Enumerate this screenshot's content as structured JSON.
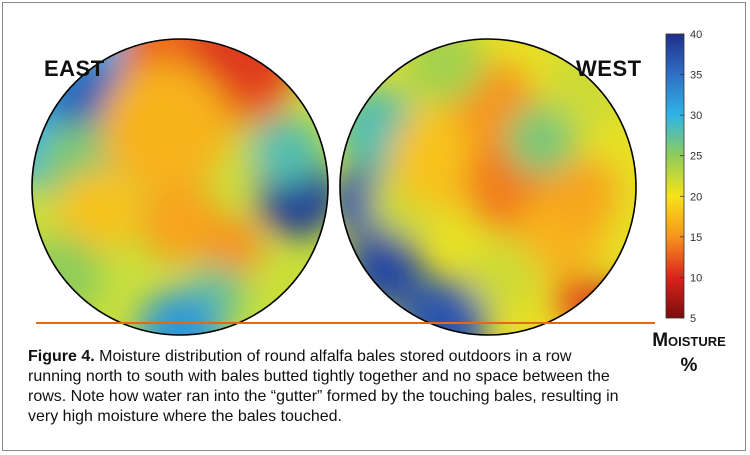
{
  "figure": {
    "caption_label": "Figure 4.",
    "caption_text": "Moisture distribution of round alfalfa bales stored outdoors in a row running north to south with bales butted tightly together and no space between the rows. Note how water ran into the “gutter” formed by the touching bales, resulting in very high moisture where the bales touched."
  },
  "chart_data": {
    "type": "heatmap",
    "panels": [
      {
        "name": "EAST",
        "blobs": [
          {
            "x": 0.12,
            "y": 0.2,
            "r": 0.32,
            "value": 30
          },
          {
            "x": 0.2,
            "y": 0.22,
            "r": 0.15,
            "value": 36
          },
          {
            "x": 0.15,
            "y": 0.42,
            "r": 0.14,
            "value": 26
          },
          {
            "x": 0.6,
            "y": 0.06,
            "r": 0.3,
            "value": 13
          },
          {
            "x": 0.72,
            "y": 0.02,
            "r": 0.18,
            "value": 11
          },
          {
            "x": 0.45,
            "y": 0.3,
            "r": 0.22,
            "value": 17
          },
          {
            "x": 0.5,
            "y": 0.62,
            "r": 0.14,
            "value": 16
          },
          {
            "x": 0.22,
            "y": 0.58,
            "r": 0.14,
            "value": 18
          },
          {
            "x": 0.76,
            "y": 0.4,
            "r": 0.12,
            "value": 22
          },
          {
            "x": 0.68,
            "y": 0.7,
            "r": 0.1,
            "value": 15
          },
          {
            "x": 0.9,
            "y": 0.53,
            "r": 0.14,
            "value": 39
          },
          {
            "x": 0.86,
            "y": 0.38,
            "r": 0.12,
            "value": 28
          },
          {
            "x": 0.62,
            "y": 0.86,
            "r": 0.1,
            "value": 27
          },
          {
            "x": 0.5,
            "y": 0.99,
            "r": 0.14,
            "value": 32
          },
          {
            "x": 0.1,
            "y": 0.8,
            "r": 0.14,
            "value": 25
          }
        ]
      },
      {
        "name": "WEST",
        "blobs": [
          {
            "x": 0.08,
            "y": 0.55,
            "r": 0.12,
            "value": 37
          },
          {
            "x": 0.15,
            "y": 0.78,
            "r": 0.13,
            "value": 38
          },
          {
            "x": 0.35,
            "y": 0.96,
            "r": 0.15,
            "value": 37
          },
          {
            "x": 0.12,
            "y": 0.3,
            "r": 0.14,
            "value": 28
          },
          {
            "x": 0.22,
            "y": 0.55,
            "r": 0.12,
            "value": 22
          },
          {
            "x": 0.35,
            "y": 0.4,
            "r": 0.18,
            "value": 18
          },
          {
            "x": 0.6,
            "y": 0.48,
            "r": 0.18,
            "value": 14
          },
          {
            "x": 0.52,
            "y": 0.22,
            "r": 0.14,
            "value": 15
          },
          {
            "x": 0.75,
            "y": 0.65,
            "r": 0.15,
            "value": 17
          },
          {
            "x": 0.82,
            "y": 0.52,
            "r": 0.12,
            "value": 16
          },
          {
            "x": 0.68,
            "y": 0.34,
            "r": 0.12,
            "value": 26
          },
          {
            "x": 0.85,
            "y": 0.15,
            "r": 0.15,
            "value": 22
          },
          {
            "x": 0.55,
            "y": 0.8,
            "r": 0.12,
            "value": 22
          },
          {
            "x": 0.9,
            "y": 0.92,
            "r": 0.1,
            "value": 8
          },
          {
            "x": 0.8,
            "y": 0.88,
            "r": 0.08,
            "value": 12
          },
          {
            "x": 0.35,
            "y": 0.08,
            "r": 0.14,
            "value": 24
          }
        ]
      }
    ],
    "colorbar": {
      "min": 5,
      "max": 40,
      "ticks": [
        "40",
        "35",
        "30",
        "25",
        "20",
        "15",
        "10",
        "5"
      ],
      "stops": [
        {
          "value": 5,
          "color": "#7a0c0c"
        },
        {
          "value": 10,
          "color": "#d9241c"
        },
        {
          "value": 15,
          "color": "#f7941d"
        },
        {
          "value": 20,
          "color": "#f7e21a"
        },
        {
          "value": 25,
          "color": "#8fcd5a"
        },
        {
          "value": 30,
          "color": "#2fb4e6"
        },
        {
          "value": 35,
          "color": "#2f6fc4"
        },
        {
          "value": 40,
          "color": "#1f2f8a"
        }
      ]
    },
    "colorbar_label_line1": "Moisture",
    "colorbar_label_line2": "%",
    "baseline_color": "#e06a1a"
  }
}
